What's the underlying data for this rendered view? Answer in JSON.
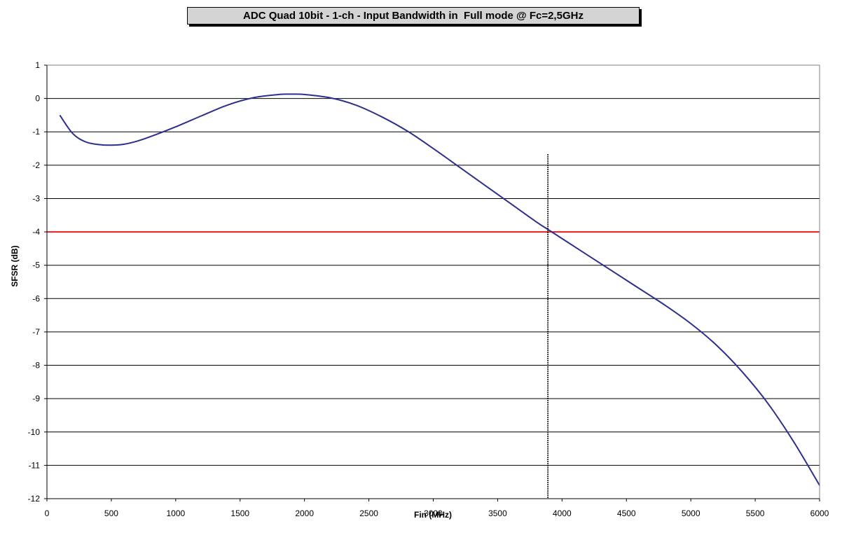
{
  "chart_data": {
    "type": "line",
    "title": "ADC Quad 10bit - 1-ch - Input Bandwidth in  Full mode @ Fc=2,5GHz",
    "xlabel": "Fin (MHz)",
    "ylabel": "SFSR (dB)",
    "xlim": [
      0,
      6000
    ],
    "ylim": [
      -12,
      1
    ],
    "x_ticks": [
      0,
      500,
      1000,
      1500,
      2000,
      2500,
      3000,
      3500,
      4000,
      4500,
      5000,
      5500,
      6000
    ],
    "y_ticks": [
      1,
      0,
      -1,
      -2,
      -3,
      -4,
      -5,
      -6,
      -7,
      -8,
      -9,
      -10,
      -11,
      -12
    ],
    "grid": "horizontal",
    "series": [
      {
        "color": "#2b2f8f",
        "x": [
          100,
          200,
          300,
          400,
          500,
          600,
          700,
          800,
          1000,
          1200,
          1400,
          1600,
          1800,
          1900,
          2000,
          2200,
          2400,
          2600,
          2800,
          3000,
          3200,
          3400,
          3600,
          3800,
          3900,
          4000,
          4200,
          4400,
          4600,
          4800,
          5000,
          5200,
          5400,
          5600,
          5800,
          6000
        ],
        "y": [
          -0.5,
          -1.05,
          -1.3,
          -1.38,
          -1.4,
          -1.37,
          -1.28,
          -1.15,
          -0.85,
          -0.52,
          -0.2,
          0.02,
          0.12,
          0.13,
          0.12,
          0.02,
          -0.2,
          -0.55,
          -0.98,
          -1.5,
          -2.05,
          -2.6,
          -3.15,
          -3.7,
          -3.95,
          -4.2,
          -4.7,
          -5.2,
          -5.7,
          -6.2,
          -6.75,
          -7.4,
          -8.2,
          -9.15,
          -10.3,
          -11.6
        ]
      }
    ],
    "reference_lines": [
      {
        "orientation": "horizontal",
        "value": -4,
        "color": "#e02020"
      },
      {
        "orientation": "vertical",
        "value": 3890,
        "color": "#000000",
        "dashed": true
      }
    ]
  }
}
